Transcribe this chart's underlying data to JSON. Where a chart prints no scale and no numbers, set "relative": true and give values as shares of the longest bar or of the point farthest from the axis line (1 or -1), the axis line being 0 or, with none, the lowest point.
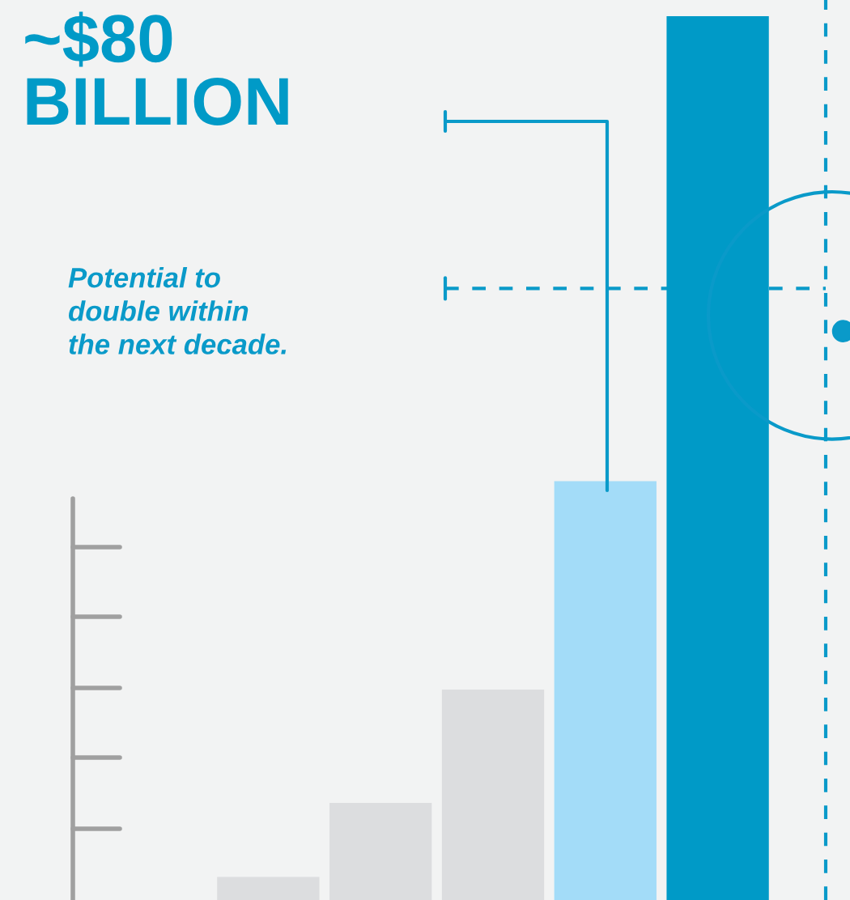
{
  "chart_data": {
    "type": "bar",
    "relative": true,
    "title": "~$80\nBILLION",
    "subtitle": "Potential to\ndouble within\nthe next decade.",
    "categories": [
      null,
      null,
      null,
      null,
      null
    ],
    "values": [
      0.026,
      0.11,
      0.238,
      0.474,
      1
    ],
    "colors": [
      "#dcdddf",
      "#dcdddf",
      "#dcdddf",
      "#a3dcf8",
      "#009ac7"
    ],
    "ref_lines": [
      {
        "axis": "y",
        "value": 0.692,
        "color": "#0a9ac9",
        "line_style": "dashed"
      }
    ],
    "grid": false,
    "legend": false
  }
}
